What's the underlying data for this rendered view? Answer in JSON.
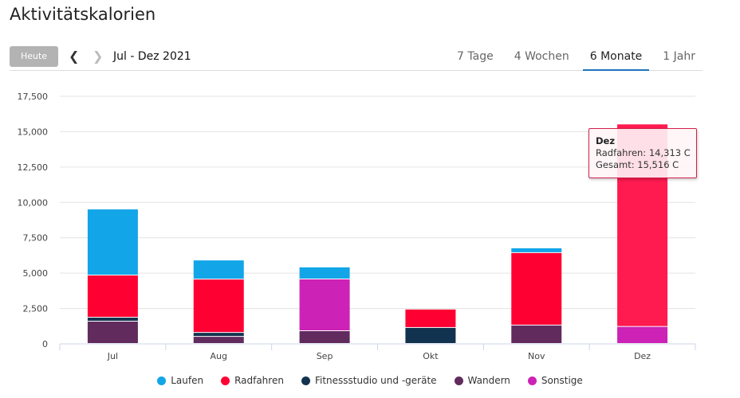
{
  "title": "Aktivitätskalorien",
  "toolbar": {
    "today": "Heute",
    "prev_icon": "chevron-left-icon",
    "next_icon": "chevron-right-icon",
    "range": "Jul - Dez 2021",
    "tabs": [
      {
        "label": "7 Tage"
      },
      {
        "label": "4 Wochen"
      },
      {
        "label": "6 Monate",
        "active": true
      },
      {
        "label": "1 Jahr"
      }
    ]
  },
  "colors": {
    "Laufen": "#12a5e8",
    "Radfahren": "#ff0033",
    "Fitnessstudio und -geräte": "#12334f",
    "Wandern": "#612b5e",
    "Sonstige": "#cc22b5",
    "accent": "#1e73be"
  },
  "tooltip": {
    "title": "Dez",
    "line1": "Radfahren: 14,313 C",
    "line2": "Gesamt: 15,516 C"
  },
  "chart_data": {
    "type": "bar",
    "stacked": true,
    "title": "Aktivitätskalorien",
    "xlabel": "",
    "ylabel": "",
    "ylim": [
      0,
      17500
    ],
    "yticks": [
      0,
      2500,
      5000,
      7500,
      10000,
      12500,
      15000,
      17500
    ],
    "ytick_labels": [
      "0",
      "2,500",
      "5,000",
      "7,500",
      "10,000",
      "12,500",
      "15,000",
      "17,500"
    ],
    "categories": [
      "Jul",
      "Aug",
      "Sep",
      "Okt",
      "Nov",
      "Dez"
    ],
    "legend_position": "bottom",
    "series": [
      {
        "name": "Wandern",
        "values": [
          1575,
          500,
          900,
          0,
          1300,
          0
        ]
      },
      {
        "name": "Sonstige",
        "values": [
          0,
          0,
          3660,
          0,
          0,
          1203
        ]
      },
      {
        "name": "Fitnessstudio und -geräte",
        "values": [
          280,
          280,
          0,
          1130,
          0,
          0
        ]
      },
      {
        "name": "Radfahren",
        "values": [
          2980,
          3770,
          0,
          1300,
          5120,
          14313
        ]
      },
      {
        "name": "Laufen",
        "values": [
          4670,
          1350,
          850,
          0,
          340,
          0
        ]
      }
    ],
    "legend_order": [
      "Laufen",
      "Radfahren",
      "Fitnessstudio und -geräte",
      "Wandern",
      "Sonstige"
    ]
  }
}
